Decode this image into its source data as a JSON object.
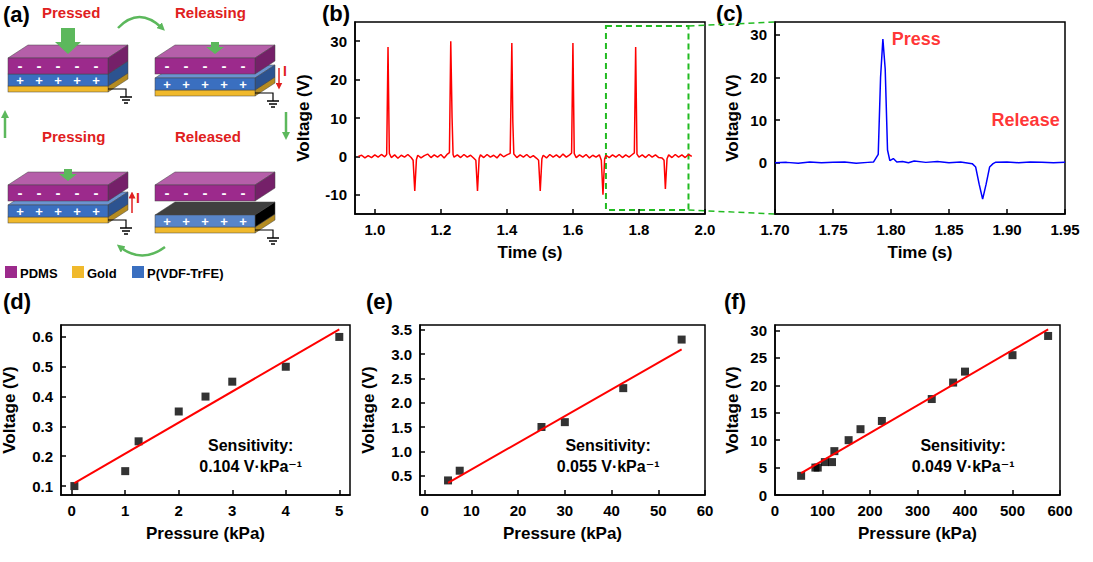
{
  "diagram": {
    "panel_label": "(a)",
    "states": [
      {
        "label": "Pressed"
      },
      {
        "label": "Releasing",
        "current": "I",
        "current_direction": "down"
      },
      {
        "label": "Released"
      },
      {
        "label": "Pressing",
        "current": "I",
        "current_direction": "up"
      }
    ],
    "charges": {
      "positive": "+",
      "negative": "-"
    },
    "layers": [
      {
        "label": "PDMS",
        "color": "#9c2a8c"
      },
      {
        "label": "Gold",
        "color": "#f0b92c"
      },
      {
        "label": "P(VDF-TrFE)",
        "color": "#3a6fc0"
      }
    ]
  },
  "chart_data": [
    {
      "panel_label": "(b)",
      "type": "line",
      "xlabel": "Time (s)",
      "ylabel": "Voltage (V)",
      "grid": false,
      "xlim": [
        0.94,
        2.0
      ],
      "xticks": [
        {
          "value": 1,
          "label": "1.0"
        },
        1.2,
        1.4,
        1.6,
        1.8,
        {
          "value": 2,
          "label": "2.0"
        }
      ],
      "ylim": [
        -15,
        35
      ],
      "yticks": [
        -10,
        0,
        10,
        20,
        30
      ],
      "series": [
        {
          "color": "#ff0000",
          "line_style": "solid",
          "x": [
            0.95,
            0.96,
            0.97,
            0.98,
            0.99,
            1.0,
            1.01,
            1.02,
            1.03,
            1.036,
            1.04,
            1.044,
            1.05,
            1.06,
            1.07,
            1.08,
            1.09,
            1.1,
            1.11,
            1.116,
            1.121,
            1.126,
            1.13,
            1.14,
            1.15,
            1.16,
            1.17,
            1.18,
            1.19,
            1.2,
            1.21,
            1.22,
            1.226,
            1.23,
            1.234,
            1.237,
            1.24,
            1.25,
            1.26,
            1.27,
            1.28,
            1.29,
            1.3,
            1.306,
            1.311,
            1.316,
            1.32,
            1.33,
            1.34,
            1.35,
            1.36,
            1.37,
            1.38,
            1.39,
            1.4,
            1.41,
            1.415,
            1.418,
            1.421,
            1.43,
            1.44,
            1.45,
            1.46,
            1.47,
            1.48,
            1.49,
            1.496,
            1.501,
            1.506,
            1.51,
            1.52,
            1.53,
            1.54,
            1.55,
            1.56,
            1.57,
            1.58,
            1.59,
            1.596,
            1.6,
            1.604,
            1.61,
            1.62,
            1.63,
            1.64,
            1.65,
            1.66,
            1.67,
            1.68,
            1.686,
            1.691,
            1.696,
            1.7,
            1.71,
            1.72,
            1.73,
            1.74,
            1.75,
            1.76,
            1.77,
            1.78,
            1.786,
            1.79,
            1.794,
            1.8,
            1.81,
            1.82,
            1.83,
            1.84,
            1.85,
            1.86,
            1.87,
            1.876,
            1.88,
            1.885,
            1.89,
            1.9,
            1.91,
            1.92,
            1.93,
            1.94,
            1.95,
            1.96
          ],
          "values": [
            0,
            0.3,
            -0.4,
            0.2,
            -0.3,
            0.4,
            -0.2,
            0.5,
            -0.1,
            0.5,
            28.5,
            0.8,
            -0.3,
            0.4,
            -0.5,
            0.3,
            -0.2,
            0.5,
            -0.3,
            -1,
            -9,
            -0.8,
            0.3,
            -0.4,
            0.2,
            0.6,
            -0.3,
            0.4,
            -0.2,
            0.5,
            -0.4,
            0.6,
            1,
            30,
            10,
            0.5,
            -0.2,
            0.4,
            -0.3,
            0.5,
            -0.2,
            0.3,
            -0.5,
            -1,
            -9,
            -0.5,
            0.4,
            -0.3,
            0.5,
            -0.2,
            0.3,
            -0.4,
            0.6,
            -0.1,
            0.4,
            0.8,
            29.5,
            9,
            0.6,
            -0.3,
            0.4,
            -0.2,
            0.5,
            -0.3,
            0.2,
            -0.5,
            -1,
            -9,
            -0.6,
            0.3,
            -0.4,
            0.5,
            -0.2,
            0.4,
            -0.3,
            0.6,
            -0.2,
            0.4,
            0.9,
            29.5,
            0.7,
            -0.3,
            0.4,
            -0.2,
            0.5,
            -0.4,
            0.3,
            -0.2,
            0.4,
            -1,
            -10,
            -0.7,
            0.3,
            -0.3,
            0.4,
            -0.2,
            0.5,
            -0.3,
            0.4,
            -0.2,
            0.5,
            0.9,
            28.5,
            0.6,
            -0.2,
            0.4,
            -0.3,
            0.5,
            -0.2,
            0.4,
            -0.3,
            -0.4,
            -1,
            -8.5,
            -0.6,
            0.4,
            -0.3,
            0.5,
            -0.2,
            0.4,
            -0.3,
            0.5,
            0
          ]
        }
      ]
    },
    {
      "panel_label": "(c)",
      "type": "line",
      "xlabel": "Time (s)",
      "ylabel": "Voltage (V)",
      "grid": false,
      "xlim": [
        1.7,
        1.95
      ],
      "xticks": [
        {
          "value": 1.7,
          "label": "1.70"
        },
        1.75,
        {
          "value": 1.8,
          "label": "1.80"
        },
        1.85,
        {
          "value": 1.9,
          "label": "1.90"
        },
        1.95
      ],
      "ylim": [
        -12,
        33
      ],
      "yticks": [
        0,
        10,
        20,
        30
      ],
      "series": [
        {
          "color": "#0000ff",
          "line_style": "solid",
          "x": [
            1.7,
            1.71,
            1.72,
            1.73,
            1.74,
            1.75,
            1.76,
            1.77,
            1.78,
            1.785,
            1.789,
            1.791,
            1.793,
            1.795,
            1.797,
            1.799,
            1.802,
            1.805,
            1.81,
            1.815,
            1.82,
            1.83,
            1.84,
            1.85,
            1.86,
            1.87,
            1.873,
            1.876,
            1.879,
            1.882,
            1.885,
            1.888,
            1.89,
            1.9,
            1.91,
            1.92,
            1.93,
            1.94,
            1.95
          ],
          "values": [
            0,
            0.1,
            -0.1,
            0.2,
            0,
            0.1,
            0.2,
            -0.1,
            0.1,
            0.2,
            2,
            20,
            29,
            22,
            3,
            0.5,
            1,
            0.2,
            0.3,
            0,
            0.4,
            0.1,
            0.3,
            0,
            0.2,
            -0.2,
            -1,
            -5,
            -8.5,
            -5,
            -1,
            -0.2,
            0.1,
            0.2,
            0,
            0.2,
            0.1,
            0,
            0.1
          ]
        }
      ],
      "annotations": [
        {
          "text": "Press",
          "x": 1.799,
          "y": 29
        },
        {
          "text": "Release",
          "x": 1.885,
          "y": 10
        }
      ]
    },
    {
      "panel_label": "(d)",
      "type": "scatter",
      "xlabel": "Pressure (kPa)",
      "ylabel": "Voltage (V)",
      "grid": false,
      "xlim": [
        -0.2,
        5.2
      ],
      "xticks": [
        0,
        1,
        2,
        3,
        4,
        5
      ],
      "ylim": [
        0.07,
        0.64
      ],
      "yticks": [
        0.1,
        0.2,
        0.3,
        0.4,
        0.5,
        0.6
      ],
      "series": [
        {
          "type": "scatter",
          "color": "#000000",
          "marker": "square",
          "x": [
            0.05,
            1,
            1.25,
            2,
            2.5,
            3,
            4,
            5
          ],
          "values": [
            0.1,
            0.15,
            0.25,
            0.35,
            0.4,
            0.45,
            0.5,
            0.6
          ]
        },
        {
          "type": "line",
          "color": "#ff0000",
          "line_style": "solid",
          "x": [
            0.05,
            5
          ],
          "values": [
            0.11,
            0.625
          ]
        }
      ],
      "annotations": [
        "Sensitivity:",
        "0.104 V·kPa⁻¹"
      ]
    },
    {
      "panel_label": "(e)",
      "type": "scatter",
      "xlabel": "Pressure (kPa)",
      "ylabel": "Voltage (V)",
      "grid": false,
      "xlim": [
        -1,
        60
      ],
      "xticks": [
        0,
        10,
        20,
        30,
        40,
        50,
        60
      ],
      "ylim": [
        0.1,
        3.6
      ],
      "yticks": [
        0.5,
        {
          "value": 1,
          "label": "1.0"
        },
        1.5,
        {
          "value": 2,
          "label": "2.0"
        },
        2.5,
        {
          "value": 3,
          "label": "3.0"
        },
        3.5
      ],
      "series": [
        {
          "type": "scatter",
          "color": "#000000",
          "marker": "square",
          "x": [
            5,
            7.5,
            25,
            30,
            42.5,
            55
          ],
          "values": [
            0.4,
            0.6,
            1.5,
            1.6,
            2.3,
            3.3
          ]
        },
        {
          "type": "line",
          "color": "#ff0000",
          "line_style": "solid",
          "x": [
            5,
            55
          ],
          "values": [
            0.35,
            3.1
          ]
        }
      ],
      "annotations": [
        "Sensitivity:",
        "0.055 V·kPa⁻¹"
      ]
    },
    {
      "panel_label": "(f)",
      "type": "scatter",
      "xlabel": "Pressure (kPa)",
      "ylabel": "Voltage (V)",
      "grid": false,
      "xlim": [
        0,
        600
      ],
      "xticks": [
        0,
        100,
        200,
        300,
        400,
        500,
        600
      ],
      "ylim": [
        0,
        31
      ],
      "yticks": [
        0,
        5,
        10,
        15,
        20,
        25,
        30
      ],
      "series": [
        {
          "type": "scatter",
          "color": "#000000",
          "marker": "square",
          "x": [
            55,
            85,
            90,
            105,
            120,
            125,
            155,
            180,
            225,
            330,
            375,
            400,
            500,
            575
          ],
          "values": [
            3.5,
            5,
            5,
            6,
            6,
            8,
            10,
            12,
            13.5,
            17.5,
            20.5,
            22.5,
            25.5,
            29
          ]
        },
        {
          "type": "line",
          "color": "#ff0000",
          "line_style": "solid",
          "x": [
            55,
            575
          ],
          "values": [
            4,
            30.2
          ]
        }
      ],
      "annotations": [
        "Sensitivity:",
        "0.049 V·kPa⁻¹"
      ]
    }
  ]
}
